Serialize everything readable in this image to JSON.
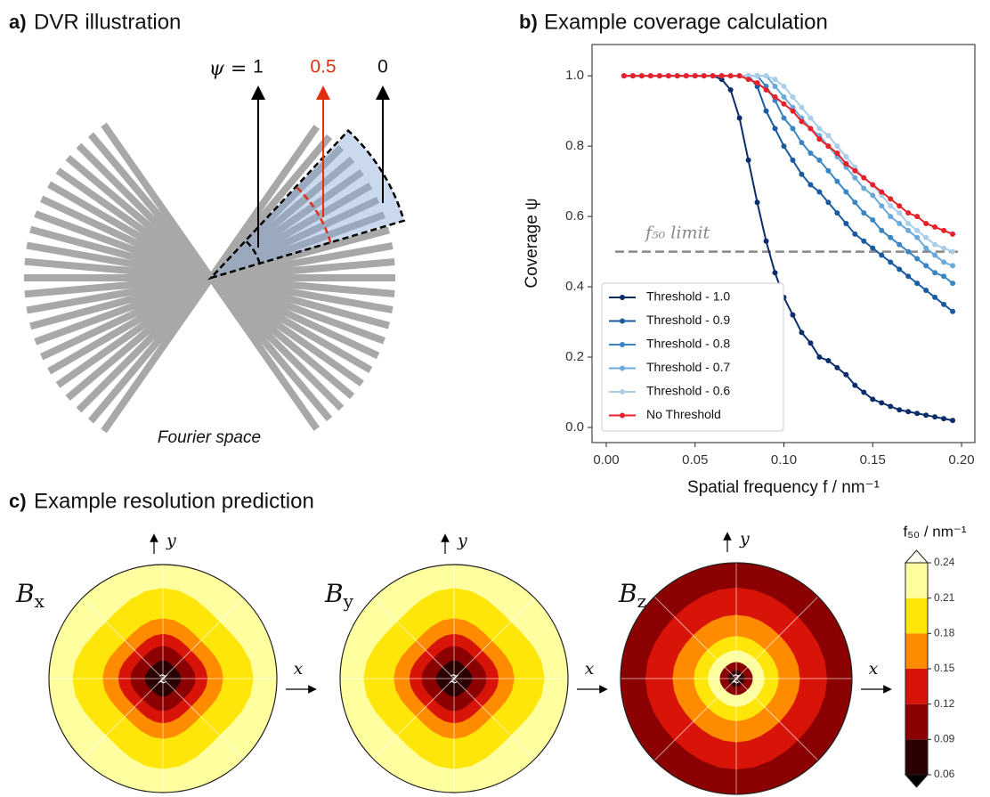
{
  "panel_a": {
    "label": "a)",
    "title": "DVR illustration",
    "psi_label": "ψ =",
    "psi_values": [
      "1",
      "0.5",
      "0"
    ],
    "caption": "Fourier space"
  },
  "chart_data": {
    "type": "line",
    "label": "b)",
    "title": "Example coverage calculation",
    "x_label": "Spatial frequency f / nm⁻¹",
    "y_label": "Coverage ψ",
    "x": [
      0.01,
      0.015,
      0.02,
      0.025,
      0.03,
      0.035,
      0.04,
      0.045,
      0.05,
      0.055,
      0.06,
      0.065,
      0.07,
      0.075,
      0.08,
      0.085,
      0.09,
      0.095,
      0.1,
      0.105,
      0.11,
      0.115,
      0.12,
      0.125,
      0.13,
      0.135,
      0.14,
      0.145,
      0.15,
      0.155,
      0.16,
      0.165,
      0.17,
      0.175,
      0.18,
      0.185,
      0.19,
      0.195
    ],
    "series": [
      {
        "name": "Threshold - 1.0",
        "color": "#0b2d6b",
        "values": [
          1,
          1,
          1,
          1,
          1,
          1,
          1,
          1,
          1,
          1,
          1,
          0.99,
          0.96,
          0.88,
          0.76,
          0.64,
          0.53,
          0.44,
          0.37,
          0.32,
          0.27,
          0.24,
          0.2,
          0.19,
          0.17,
          0.15,
          0.12,
          0.1,
          0.08,
          0.07,
          0.06,
          0.05,
          0.045,
          0.04,
          0.035,
          0.03,
          0.025,
          0.02
        ]
      },
      {
        "name": "Threshold - 0.9",
        "color": "#1a5aa0",
        "values": [
          1,
          1,
          1,
          1,
          1,
          1,
          1,
          1,
          1,
          1,
          1,
          1,
          1,
          1,
          1,
          0.97,
          0.9,
          0.85,
          0.8,
          0.76,
          0.72,
          0.69,
          0.67,
          0.64,
          0.61,
          0.58,
          0.55,
          0.53,
          0.51,
          0.49,
          0.47,
          0.45,
          0.43,
          0.41,
          0.39,
          0.37,
          0.35,
          0.33
        ]
      },
      {
        "name": "Threshold - 0.8",
        "color": "#3a86c4",
        "values": [
          1,
          1,
          1,
          1,
          1,
          1,
          1,
          1,
          1,
          1,
          1,
          1,
          1,
          1,
          1,
          1,
          0.97,
          0.93,
          0.88,
          0.85,
          0.81,
          0.78,
          0.76,
          0.73,
          0.7,
          0.67,
          0.64,
          0.61,
          0.59,
          0.56,
          0.54,
          0.52,
          0.5,
          0.48,
          0.46,
          0.44,
          0.43,
          0.41
        ]
      },
      {
        "name": "Threshold - 0.7",
        "color": "#6aaad8",
        "values": [
          1,
          1,
          1,
          1,
          1,
          1,
          1,
          1,
          1,
          1,
          1,
          1,
          1,
          1,
          1,
          1,
          1,
          0.97,
          0.94,
          0.91,
          0.88,
          0.85,
          0.83,
          0.8,
          0.77,
          0.74,
          0.71,
          0.68,
          0.66,
          0.63,
          0.6,
          0.58,
          0.56,
          0.54,
          0.51,
          0.49,
          0.47,
          0.46
        ]
      },
      {
        "name": "Threshold - 0.6",
        "color": "#aacde8",
        "values": [
          1,
          1,
          1,
          1,
          1,
          1,
          1,
          1,
          1,
          1,
          1,
          1,
          1,
          1,
          1,
          1,
          1,
          0.99,
          0.97,
          0.94,
          0.91,
          0.88,
          0.85,
          0.83,
          0.8,
          0.77,
          0.74,
          0.71,
          0.69,
          0.66,
          0.63,
          0.61,
          0.58,
          0.56,
          0.54,
          0.52,
          0.51,
          0.5
        ]
      },
      {
        "name": "No Threshold",
        "color": "#e8202a",
        "values": [
          1,
          1,
          1,
          1,
          1,
          1,
          1,
          1,
          1,
          1,
          1,
          1,
          1,
          1,
          0.99,
          0.98,
          0.96,
          0.94,
          0.92,
          0.9,
          0.87,
          0.85,
          0.82,
          0.8,
          0.78,
          0.75,
          0.73,
          0.71,
          0.69,
          0.67,
          0.65,
          0.63,
          0.61,
          0.6,
          0.58,
          0.57,
          0.56,
          0.55
        ]
      }
    ],
    "reference_line": {
      "value": 0.5,
      "label": "f₅₀ limit"
    },
    "xlim": [
      -0.008,
      0.2075
    ],
    "ylim": [
      -0.043,
      1.089
    ],
    "xticks": [
      {
        "value": 0,
        "label": "0.00"
      },
      0.05,
      {
        "value": 0.1,
        "label": "0.10"
      },
      0.15,
      {
        "value": 0.2,
        "label": "0.20"
      }
    ],
    "yticks": [
      {
        "value": 0,
        "label": "0.0"
      },
      0.2,
      0.4,
      0.6,
      0.8,
      {
        "value": 1,
        "label": "1.0"
      }
    ],
    "legend": "lower left"
  },
  "panel_c": {
    "label": "c)",
    "title": "Example resolution prediction",
    "plots": [
      {
        "symbol": "B",
        "subscript": "x"
      },
      {
        "symbol": "B",
        "subscript": "y"
      },
      {
        "symbol": "B",
        "subscript": "z"
      }
    ],
    "axes": {
      "x": "x",
      "y": "y",
      "z": "z"
    },
    "colorbar": {
      "label": "f₅₀ / nm⁻¹",
      "ticks": [
        0.06,
        0.09,
        0.12,
        0.15,
        0.18,
        0.21,
        0.24
      ],
      "colors": [
        "#2a0000",
        "#8b0000",
        "#d81408",
        "#ff8c00",
        "#ffe60a",
        "#ffffa0"
      ]
    }
  }
}
